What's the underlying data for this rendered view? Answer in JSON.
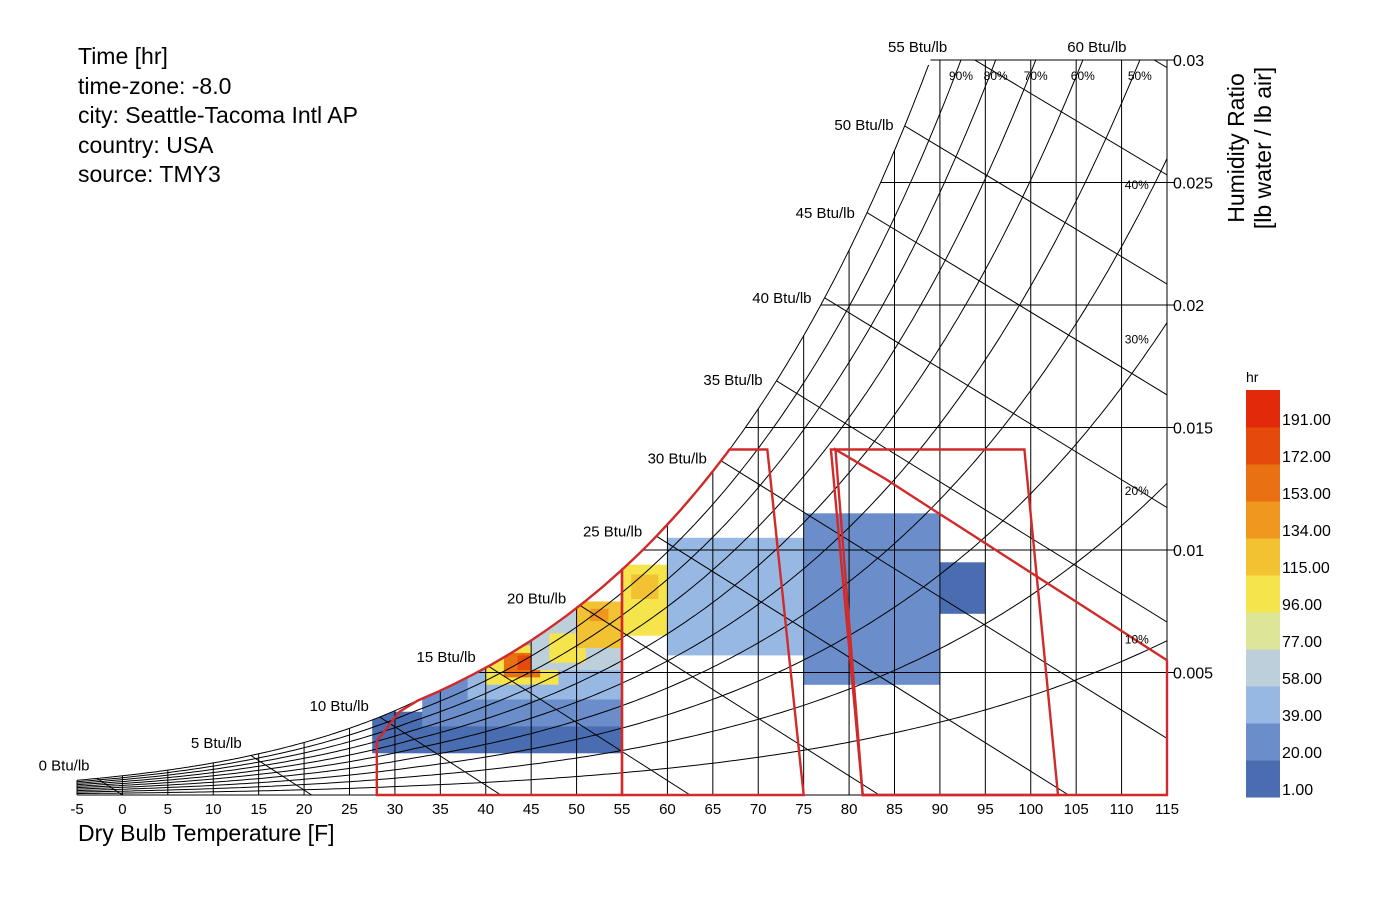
{
  "info": {
    "lines": [
      "Time [hr]",
      "time-zone: -8.0",
      "city: Seattle-Tacoma Intl AP",
      "country: USA",
      "source: TMY3"
    ]
  },
  "colors": {
    "comfort_outline": "#d02a2a",
    "grid": "#000000",
    "legend_scale": [
      "#4a6cb0",
      "#6b8ecb",
      "#98b8e4",
      "#bccfdb",
      "#dde598",
      "#f6e44c",
      "#f3c233",
      "#f0971f",
      "#e97112",
      "#e54a0c",
      "#e02a0a"
    ]
  },
  "chart_data": {
    "type": "heatmap",
    "title": "",
    "xlabel": "Dry Bulb Temperature [F]",
    "ylabel": [
      "Humidity Ratio",
      "[lb water / lb air]"
    ],
    "xlim": [
      -5,
      115
    ],
    "ylim": [
      0,
      0.03
    ],
    "x_ticks": [
      "-5",
      "0",
      "5",
      "10",
      "15",
      "20",
      "25",
      "30",
      "35",
      "40",
      "45",
      "50",
      "55",
      "60",
      "65",
      "70",
      "75",
      "80",
      "85",
      "90",
      "95",
      "100",
      "105",
      "110",
      "115"
    ],
    "y_ticks": [
      {
        "value": 0.005,
        "label": "0.005"
      },
      {
        "value": 0.01,
        "label": "0.01"
      },
      {
        "value": 0.015,
        "label": "0.015"
      },
      {
        "value": 0.02,
        "label": "0.02"
      },
      {
        "value": 0.025,
        "label": "0.025"
      },
      {
        "value": 0.03,
        "label": "0.03"
      }
    ],
    "enthalpy_labels": [
      "0 Btu/lb",
      "5 Btu/lb",
      "10 Btu/lb",
      "15 Btu/lb",
      "20 Btu/lb",
      "25 Btu/lb",
      "30 Btu/lb",
      "35 Btu/lb",
      "40 Btu/lb",
      "45 Btu/lb",
      "50 Btu/lb",
      "55 Btu/lb",
      "60 Btu/lb"
    ],
    "rh_labels": [
      "90%",
      "80%",
      "70%",
      "60%",
      "50%",
      "40%",
      "30%",
      "20%",
      "10%"
    ],
    "legend": {
      "unit": "hr",
      "labels": [
        "1.00",
        "20.00",
        "39.00",
        "58.00",
        "77.00",
        "96.00",
        "115.00",
        "134.00",
        "153.00",
        "172.00",
        "191.00"
      ]
    },
    "comfort_polygons": [
      [
        [
          28,
          0
        ],
        [
          28,
          0.0022
        ],
        [
          30.5,
          0.0034
        ],
        [
          55,
          0.0093
        ],
        [
          55,
          0
        ]
      ],
      [
        [
          55,
          0
        ],
        [
          55,
          0.0093
        ],
        [
          66,
          0.0141
        ],
        [
          71,
          0.0141
        ],
        [
          75,
          0
        ]
      ],
      [
        [
          81.5,
          0
        ],
        [
          78,
          0.0141
        ],
        [
          99.3,
          0.0141
        ],
        [
          103,
          0
        ]
      ],
      [
        [
          81.5,
          0
        ],
        [
          78.5,
          0.0141
        ],
        [
          84,
          0.0129
        ],
        [
          115,
          0.0055
        ],
        [
          115,
          0
        ]
      ]
    ],
    "hour_bins": [
      {
        "x": 27.5,
        "w": 27.5,
        "lo": 0.0017,
        "hi": 0.0034,
        "v": 12
      },
      {
        "x": 33,
        "w": 22,
        "lo": 0.0028,
        "hi": 0.0049,
        "v": 30
      },
      {
        "x": 38,
        "w": 17,
        "lo": 0.0039,
        "hi": 0.0062,
        "v": 50
      },
      {
        "x": 40,
        "w": 8,
        "lo": 0.0045,
        "hi": 0.0061,
        "v": 110
      },
      {
        "x": 42,
        "w": 4,
        "lo": 0.0048,
        "hi": 0.0058,
        "v": 170
      },
      {
        "x": 43.5,
        "w": 2,
        "lo": 0.0051,
        "hi": 0.0057,
        "v": 185
      },
      {
        "x": 45,
        "w": 10,
        "lo": 0.0051,
        "hi": 0.0079,
        "v": 62
      },
      {
        "x": 47,
        "w": 4,
        "lo": 0.0054,
        "hi": 0.0066,
        "v": 108
      },
      {
        "x": 50,
        "w": 5,
        "lo": 0.006,
        "hi": 0.0079,
        "v": 118
      },
      {
        "x": 51.5,
        "w": 2,
        "lo": 0.0071,
        "hi": 0.0076,
        "v": 152
      },
      {
        "x": 55,
        "w": 5,
        "lo": 0.0065,
        "hi": 0.0094,
        "v": 100
      },
      {
        "x": 56,
        "w": 3,
        "lo": 0.008,
        "hi": 0.009,
        "v": 128
      },
      {
        "x": 60,
        "w": 15,
        "lo": 0.0057,
        "hi": 0.0105,
        "v": 45
      },
      {
        "x": 75,
        "w": 15,
        "lo": 0.0045,
        "hi": 0.0115,
        "v": 22
      },
      {
        "x": 90,
        "w": 5,
        "lo": 0.0074,
        "hi": 0.0095,
        "v": 4
      }
    ]
  }
}
